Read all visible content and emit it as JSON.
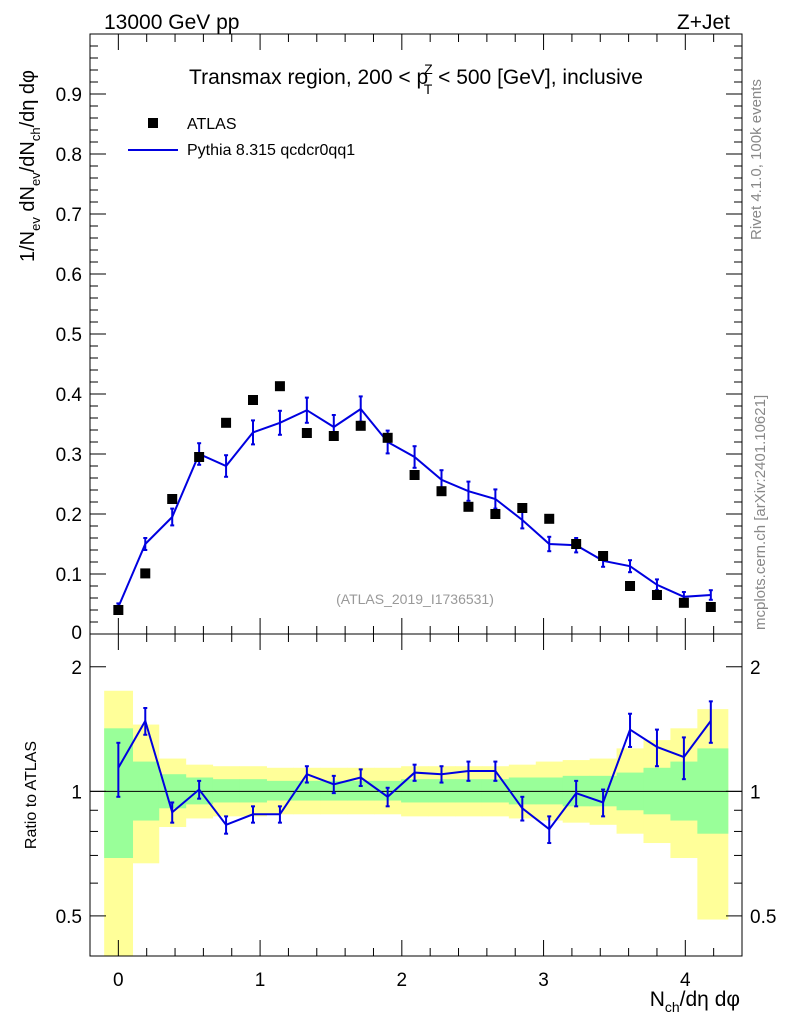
{
  "header": {
    "left": "13000 GeV pp",
    "right": "Z+Jet"
  },
  "side_text": {
    "rivet": "Rivet 4.1.0,  100k events",
    "mcplots": "mcplots.cern.ch [arXiv:2401.10621]"
  },
  "colors": {
    "data": "#000000",
    "mc": "#0000e0",
    "band_green": "#99ff99",
    "band_yellow": "#ffff99"
  },
  "chart_data": [
    {
      "type": "scatter",
      "title": "Transmax region, 200 < p_T^Z < 500 [GeV], inclusive",
      "title_parts": {
        "before": "Transmax region, 200 < p",
        "sup": "Z",
        "sub": "T",
        "after": " < 500 [GeV], inclusive"
      },
      "ylabel": "1/N_ev dN_ev/dN_ch/dη dφ",
      "ylabel_parts": [
        "1/N",
        "ev",
        " dN",
        "ev",
        "/dN",
        "ch",
        "/dη dφ"
      ],
      "xlim": [
        -0.2,
        4.4
      ],
      "ylim": [
        0,
        1.0
      ],
      "yticks": [
        0.1,
        0.2,
        0.3,
        0.4,
        0.5,
        0.6,
        0.7,
        0.8,
        0.9
      ],
      "ytick_labels": [
        "0.1",
        "0.2",
        "0.3",
        "0.4",
        "0.5",
        "0.6",
        "0.7",
        "0.8",
        "0.9"
      ],
      "bottom_tick_label": "0",
      "watermark": "(ATLAS_2019_I1736531)",
      "legend": [
        {
          "name": "ATLAS",
          "marker": "square"
        },
        {
          "name": "Pythia 8.315 qcdcr0qq1",
          "marker": "line"
        }
      ],
      "x": [
        0.0,
        0.19,
        0.38,
        0.57,
        0.76,
        0.95,
        1.14,
        1.33,
        1.52,
        1.71,
        1.9,
        2.09,
        2.28,
        2.47,
        2.66,
        2.85,
        3.04,
        3.23,
        3.42,
        3.61,
        3.8,
        3.99,
        4.18
      ],
      "series": [
        {
          "name": "ATLAS",
          "values": [
            0.04,
            0.101,
            0.225,
            0.295,
            0.352,
            0.39,
            0.413,
            0.335,
            0.33,
            0.347,
            0.327,
            0.265,
            0.238,
            0.212,
            0.2,
            0.21,
            0.192,
            0.15,
            0.13,
            0.08,
            0.065,
            0.052,
            0.045
          ]
        },
        {
          "name": "Pythia 8.315 qcdcr0qq1",
          "values": [
            0.045,
            0.15,
            0.195,
            0.3,
            0.28,
            0.336,
            0.352,
            0.373,
            0.345,
            0.375,
            0.32,
            0.295,
            0.257,
            0.238,
            0.225,
            0.19,
            0.15,
            0.148,
            0.122,
            0.113,
            0.082,
            0.062,
            0.065
          ],
          "errors": [
            0.006,
            0.01,
            0.014,
            0.018,
            0.018,
            0.02,
            0.02,
            0.021,
            0.02,
            0.021,
            0.019,
            0.018,
            0.016,
            0.016,
            0.016,
            0.014,
            0.012,
            0.012,
            0.01,
            0.01,
            0.009,
            0.008,
            0.008
          ]
        }
      ]
    },
    {
      "type": "line",
      "ylabel": "Ratio to ATLAS",
      "xlabel": "N_ch/dη dφ",
      "xlabel_parts": [
        "N",
        "ch",
        "/dη dφ"
      ],
      "xlim": [
        -0.2,
        4.4
      ],
      "ylim": [
        0.4,
        2.4
      ],
      "ylog": true,
      "yticks": [
        0.5,
        1,
        2
      ],
      "ytick_labels": [
        "0.5",
        "1",
        "2"
      ],
      "xticks": [
        0,
        1,
        2,
        3,
        4
      ],
      "xtick_labels": [
        "0",
        "1",
        "2",
        "3",
        "4"
      ],
      "x": [
        0.0,
        0.19,
        0.38,
        0.57,
        0.76,
        0.95,
        1.14,
        1.33,
        1.52,
        1.71,
        1.9,
        2.09,
        2.28,
        2.47,
        2.66,
        2.85,
        3.04,
        3.23,
        3.42,
        3.61,
        3.8,
        3.99,
        4.18
      ],
      "bin_edges": [
        -0.1,
        0.1,
        0.285,
        0.475,
        0.665,
        0.855,
        1.045,
        1.235,
        1.425,
        1.615,
        1.805,
        1.995,
        2.185,
        2.375,
        2.565,
        2.755,
        2.945,
        3.135,
        3.325,
        3.515,
        3.705,
        3.895,
        4.085,
        4.3
      ],
      "ratio": [
        1.14,
        1.48,
        0.89,
        1.01,
        0.83,
        0.88,
        0.88,
        1.1,
        1.04,
        1.08,
        0.97,
        1.11,
        1.1,
        1.12,
        1.12,
        0.91,
        0.81,
        0.99,
        0.94,
        1.41,
        1.28,
        1.21,
        1.48
      ],
      "ratio_errors": [
        0.17,
        0.11,
        0.05,
        0.05,
        0.04,
        0.04,
        0.04,
        0.05,
        0.05,
        0.05,
        0.05,
        0.05,
        0.05,
        0.06,
        0.06,
        0.06,
        0.06,
        0.07,
        0.07,
        0.13,
        0.13,
        0.14,
        0.17
      ],
      "band_green": [
        [
          0.69,
          1.42
        ],
        [
          0.85,
          1.18
        ],
        [
          0.91,
          1.1
        ],
        [
          0.93,
          1.08
        ],
        [
          0.94,
          1.07
        ],
        [
          0.94,
          1.07
        ],
        [
          0.95,
          1.06
        ],
        [
          0.95,
          1.06
        ],
        [
          0.95,
          1.06
        ],
        [
          0.95,
          1.06
        ],
        [
          0.95,
          1.06
        ],
        [
          0.94,
          1.07
        ],
        [
          0.94,
          1.07
        ],
        [
          0.94,
          1.07
        ],
        [
          0.94,
          1.07
        ],
        [
          0.93,
          1.08
        ],
        [
          0.93,
          1.08
        ],
        [
          0.92,
          1.09
        ],
        [
          0.92,
          1.09
        ],
        [
          0.9,
          1.11
        ],
        [
          0.88,
          1.14
        ],
        [
          0.85,
          1.18
        ],
        [
          0.79,
          1.27
        ]
      ],
      "band_yellow": [
        [
          0.35,
          1.75
        ],
        [
          0.67,
          1.45
        ],
        [
          0.82,
          1.2
        ],
        [
          0.86,
          1.16
        ],
        [
          0.87,
          1.15
        ],
        [
          0.87,
          1.15
        ],
        [
          0.88,
          1.14
        ],
        [
          0.88,
          1.14
        ],
        [
          0.88,
          1.14
        ],
        [
          0.88,
          1.14
        ],
        [
          0.88,
          1.14
        ],
        [
          0.87,
          1.15
        ],
        [
          0.87,
          1.15
        ],
        [
          0.87,
          1.15
        ],
        [
          0.87,
          1.15
        ],
        [
          0.86,
          1.16
        ],
        [
          0.85,
          1.18
        ],
        [
          0.84,
          1.19
        ],
        [
          0.83,
          1.2
        ],
        [
          0.79,
          1.27
        ],
        [
          0.75,
          1.33
        ],
        [
          0.69,
          1.42
        ],
        [
          0.49,
          1.58
        ]
      ]
    }
  ]
}
